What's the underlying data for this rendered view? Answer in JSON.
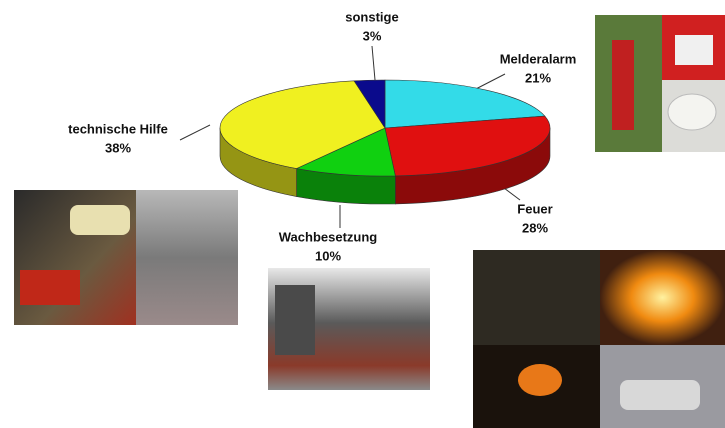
{
  "chart_data": {
    "type": "pie",
    "categories": [
      "Melderalarm",
      "Feuer",
      "Wachbesetzung",
      "technische Hilfe",
      "sonstige"
    ],
    "values": [
      21,
      28,
      10,
      38,
      3
    ],
    "value_labels": [
      "21%",
      "28%",
      "10%",
      "38%",
      "3%"
    ],
    "colors": [
      "#33dbe8",
      "#e01010",
      "#10d010",
      "#f0f020",
      "#0a0a8c"
    ]
  }
}
